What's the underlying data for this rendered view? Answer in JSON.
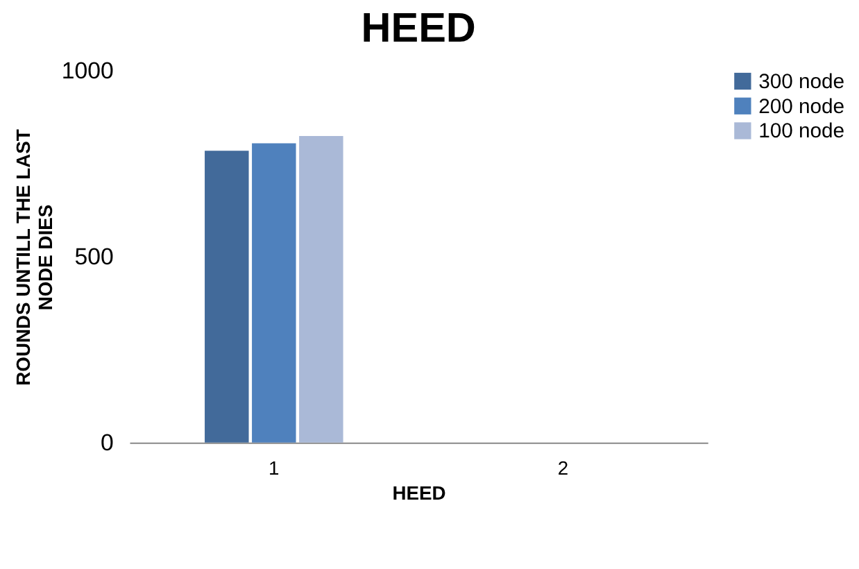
{
  "chart_data": {
    "type": "bar",
    "title": "HEED",
    "xlabel": "HEED",
    "ylabel": "ROUNDS UNTILL THE LAST NODE DIES",
    "categories": [
      "1",
      "2"
    ],
    "series": [
      {
        "name": "300 node",
        "color": "#426a9a",
        "values": [
          785,
          null
        ]
      },
      {
        "name": "200 node",
        "color": "#4f81bd",
        "values": [
          805,
          null
        ]
      },
      {
        "name": "100 node",
        "color": "#aab9d7",
        "values": [
          825,
          null
        ]
      }
    ],
    "ylim": [
      0,
      1000
    ],
    "yticks": [
      0,
      500,
      1000
    ],
    "grid": false,
    "legend": "right"
  }
}
